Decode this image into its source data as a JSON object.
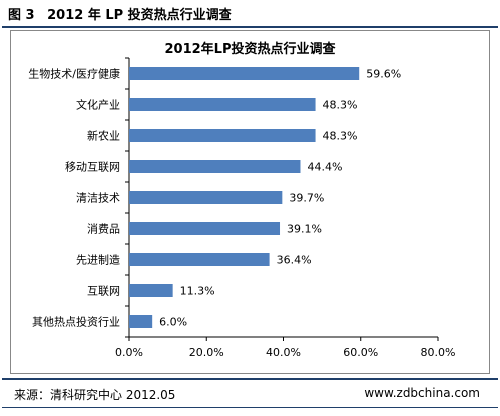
{
  "figure": {
    "label": "图 3",
    "title": "2012 年 LP 投资热点行业调查"
  },
  "footer": {
    "source": "来源：清科研究中心 2012.05",
    "site": "www.zdbchina.com"
  },
  "colors": {
    "bar": "#4f7fbd",
    "rule": "#1f3f6a"
  },
  "chart_data": {
    "type": "bar",
    "orientation": "horizontal",
    "title": "2012年LP投资热点行业调查",
    "categories": [
      "生物技术/医疗健康",
      "文化产业",
      "新农业",
      "移动互联网",
      "清洁技术",
      "消费品",
      "先进制造",
      "互联网",
      "其他热点投资行业"
    ],
    "values": [
      59.6,
      48.3,
      48.3,
      44.4,
      39.7,
      39.1,
      36.4,
      11.3,
      6.0
    ],
    "value_labels": [
      "59.6%",
      "48.3%",
      "48.3%",
      "44.4%",
      "39.7%",
      "39.1%",
      "36.4%",
      "11.3%",
      "6.0%"
    ],
    "xlim": [
      0,
      80
    ],
    "xticks": [
      0,
      20,
      40,
      60,
      80
    ],
    "xtick_labels": [
      "0.0%",
      "20.0%",
      "40.0%",
      "60.0%",
      "80.0%"
    ],
    "xlabel": "",
    "ylabel": "",
    "grid": false,
    "legend": "none"
  }
}
